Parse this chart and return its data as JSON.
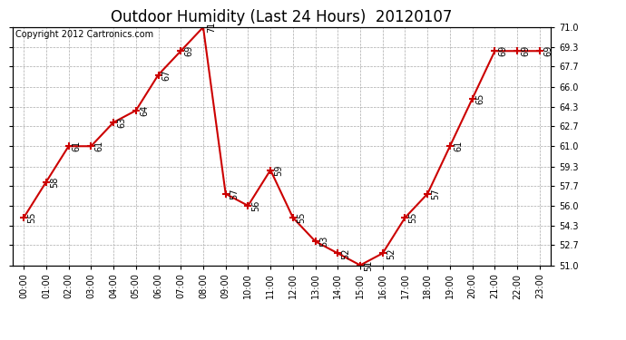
{
  "title": "Outdoor Humidity (Last 24 Hours)  20120107",
  "copyright": "Copyright 2012 Cartronics.com",
  "times": [
    "00:00",
    "01:00",
    "02:00",
    "03:00",
    "04:00",
    "05:00",
    "06:00",
    "07:00",
    "08:00",
    "09:00",
    "10:00",
    "11:00",
    "12:00",
    "13:00",
    "14:00",
    "15:00",
    "16:00",
    "17:00",
    "18:00",
    "19:00",
    "20:00",
    "21:00",
    "22:00",
    "23:00"
  ],
  "values": [
    55,
    58,
    61,
    61,
    63,
    64,
    67,
    69,
    71,
    57,
    56,
    59,
    55,
    53,
    52,
    51,
    52,
    55,
    57,
    61,
    65,
    69,
    69,
    69
  ],
  "ylim": [
    51.0,
    71.0
  ],
  "yticks": [
    51.0,
    52.7,
    54.3,
    56.0,
    57.7,
    59.3,
    61.0,
    62.7,
    64.3,
    66.0,
    67.7,
    69.3,
    71.0
  ],
  "line_color": "#cc0000",
  "marker": "+",
  "marker_size": 6,
  "marker_color": "#cc0000",
  "bg_color": "#ffffff",
  "grid_color": "#aaaaaa",
  "title_fontsize": 12,
  "copyright_fontsize": 7,
  "label_fontsize": 7,
  "tick_fontsize": 7,
  "annot_fontsize": 7
}
